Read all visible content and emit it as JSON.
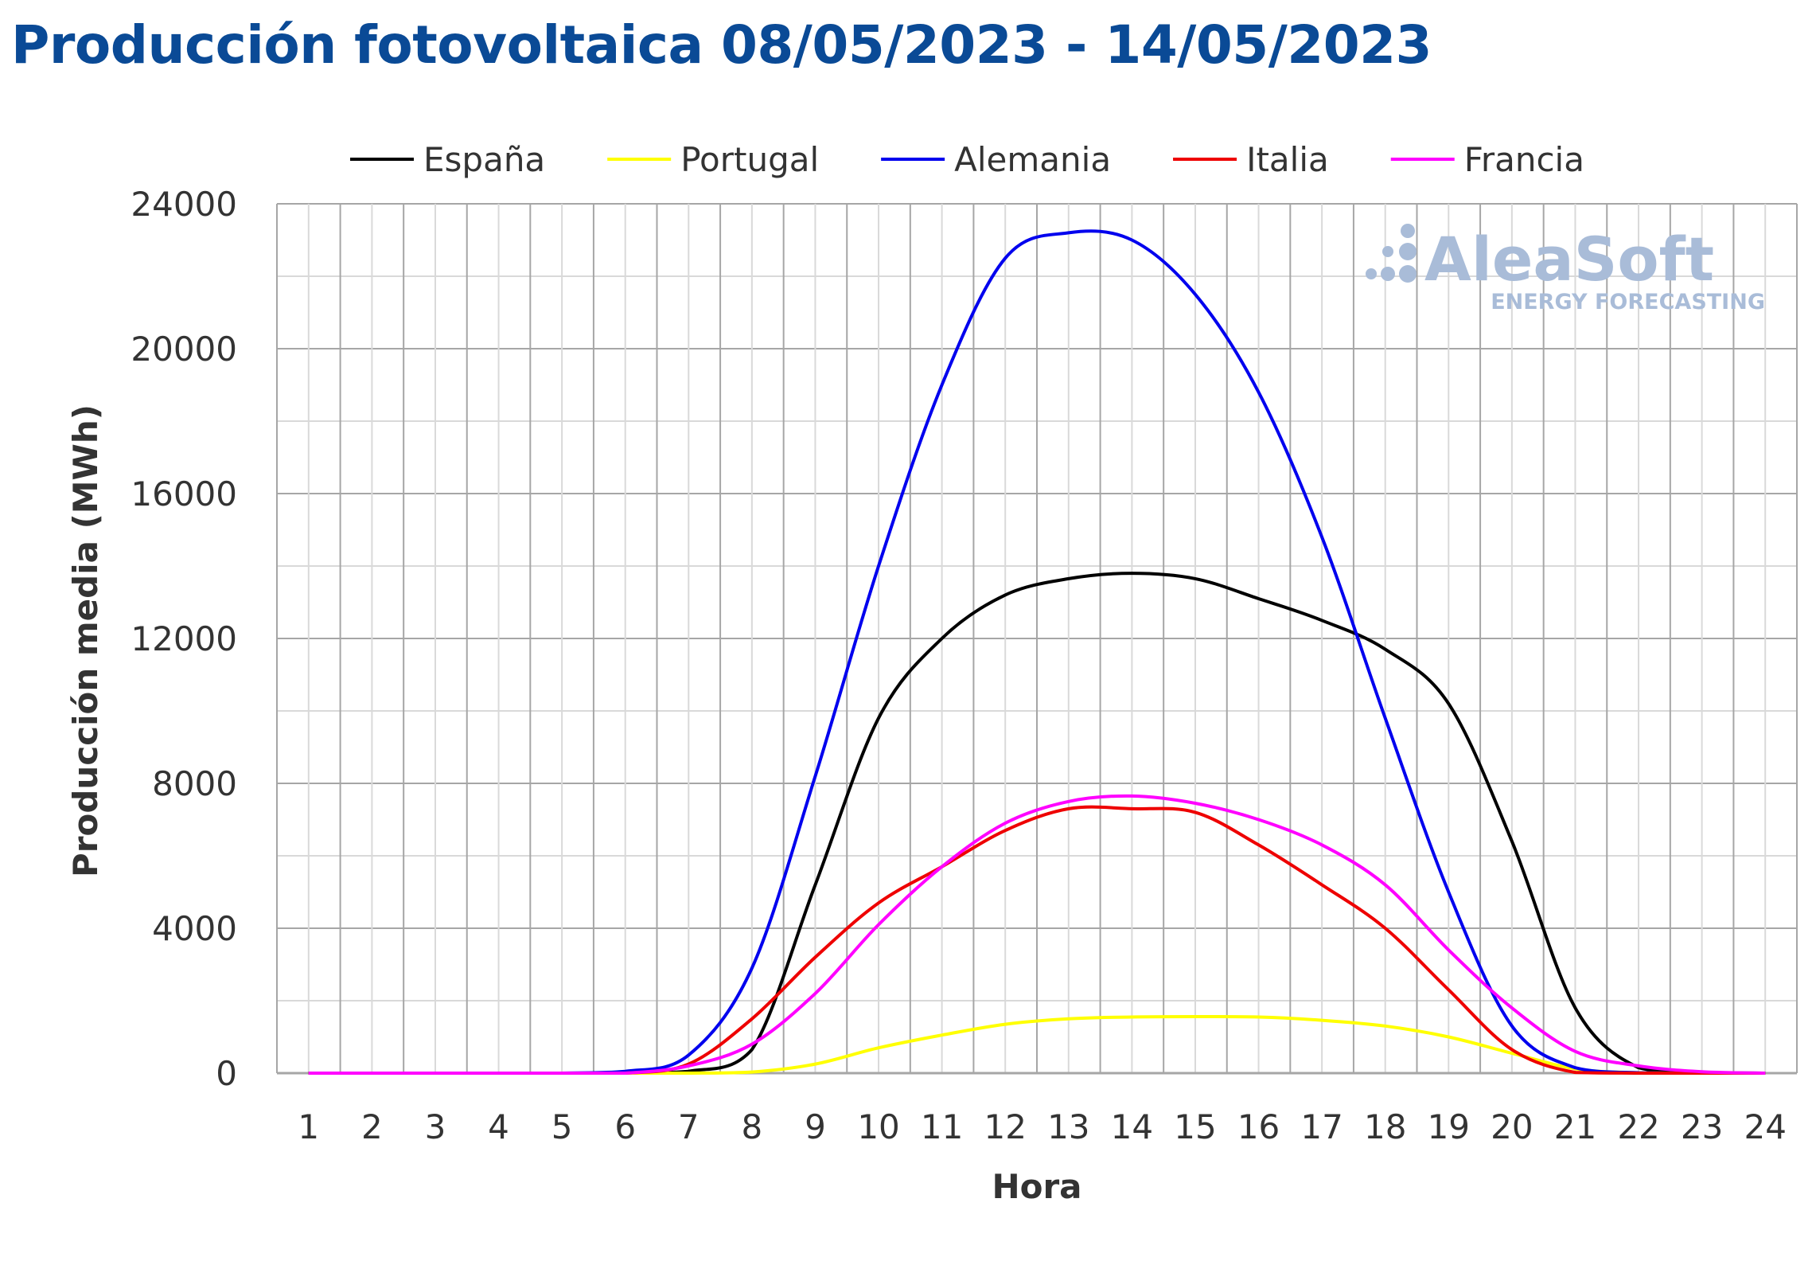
{
  "title": "Producción fotovoltaica 08/05/2023 - 14/05/2023",
  "watermark": {
    "brand": "AleaSoft",
    "tagline": "ENERGY FORECASTING"
  },
  "chart_data": {
    "type": "line",
    "xlabel": "Hora",
    "ylabel": "Producción media (MWh)",
    "ylim": [
      0,
      24000
    ],
    "yticks": [
      0,
      4000,
      8000,
      12000,
      16000,
      20000,
      24000
    ],
    "x": [
      1,
      2,
      3,
      4,
      5,
      6,
      7,
      8,
      9,
      10,
      11,
      12,
      13,
      14,
      15,
      16,
      17,
      18,
      19,
      20,
      21,
      22,
      23,
      24
    ],
    "grid": true,
    "legend": "top",
    "series": [
      {
        "name": "España",
        "color": "#000000",
        "values": [
          0,
          0,
          0,
          0,
          0,
          0,
          50,
          650,
          5200,
          9800,
          12000,
          13200,
          13650,
          13800,
          13650,
          13100,
          12500,
          11700,
          10200,
          6400,
          1800,
          150,
          20,
          0
        ]
      },
      {
        "name": "Portugal",
        "color": "#ffff00",
        "values": [
          0,
          0,
          0,
          0,
          0,
          0,
          0,
          30,
          250,
          700,
          1050,
          1350,
          1500,
          1550,
          1560,
          1550,
          1460,
          1300,
          1000,
          550,
          120,
          10,
          0,
          0
        ]
      },
      {
        "name": "Alemania",
        "color": "#0000ee",
        "values": [
          0,
          0,
          0,
          0,
          0,
          50,
          500,
          2900,
          8200,
          14000,
          19000,
          22500,
          23200,
          23000,
          21500,
          18800,
          14800,
          9800,
          5000,
          1300,
          150,
          10,
          0,
          0
        ]
      },
      {
        "name": "Italia",
        "color": "#ee0000",
        "values": [
          0,
          0,
          0,
          0,
          0,
          0,
          250,
          1500,
          3200,
          4700,
          5700,
          6700,
          7300,
          7300,
          7200,
          6300,
          5200,
          4000,
          2300,
          650,
          20,
          0,
          0,
          0
        ]
      },
      {
        "name": "Francia",
        "color": "#ff00ff",
        "values": [
          0,
          0,
          0,
          0,
          0,
          0,
          200,
          800,
          2200,
          4100,
          5700,
          6900,
          7500,
          7650,
          7450,
          7000,
          6300,
          5200,
          3400,
          1800,
          600,
          200,
          40,
          0
        ]
      }
    ]
  }
}
